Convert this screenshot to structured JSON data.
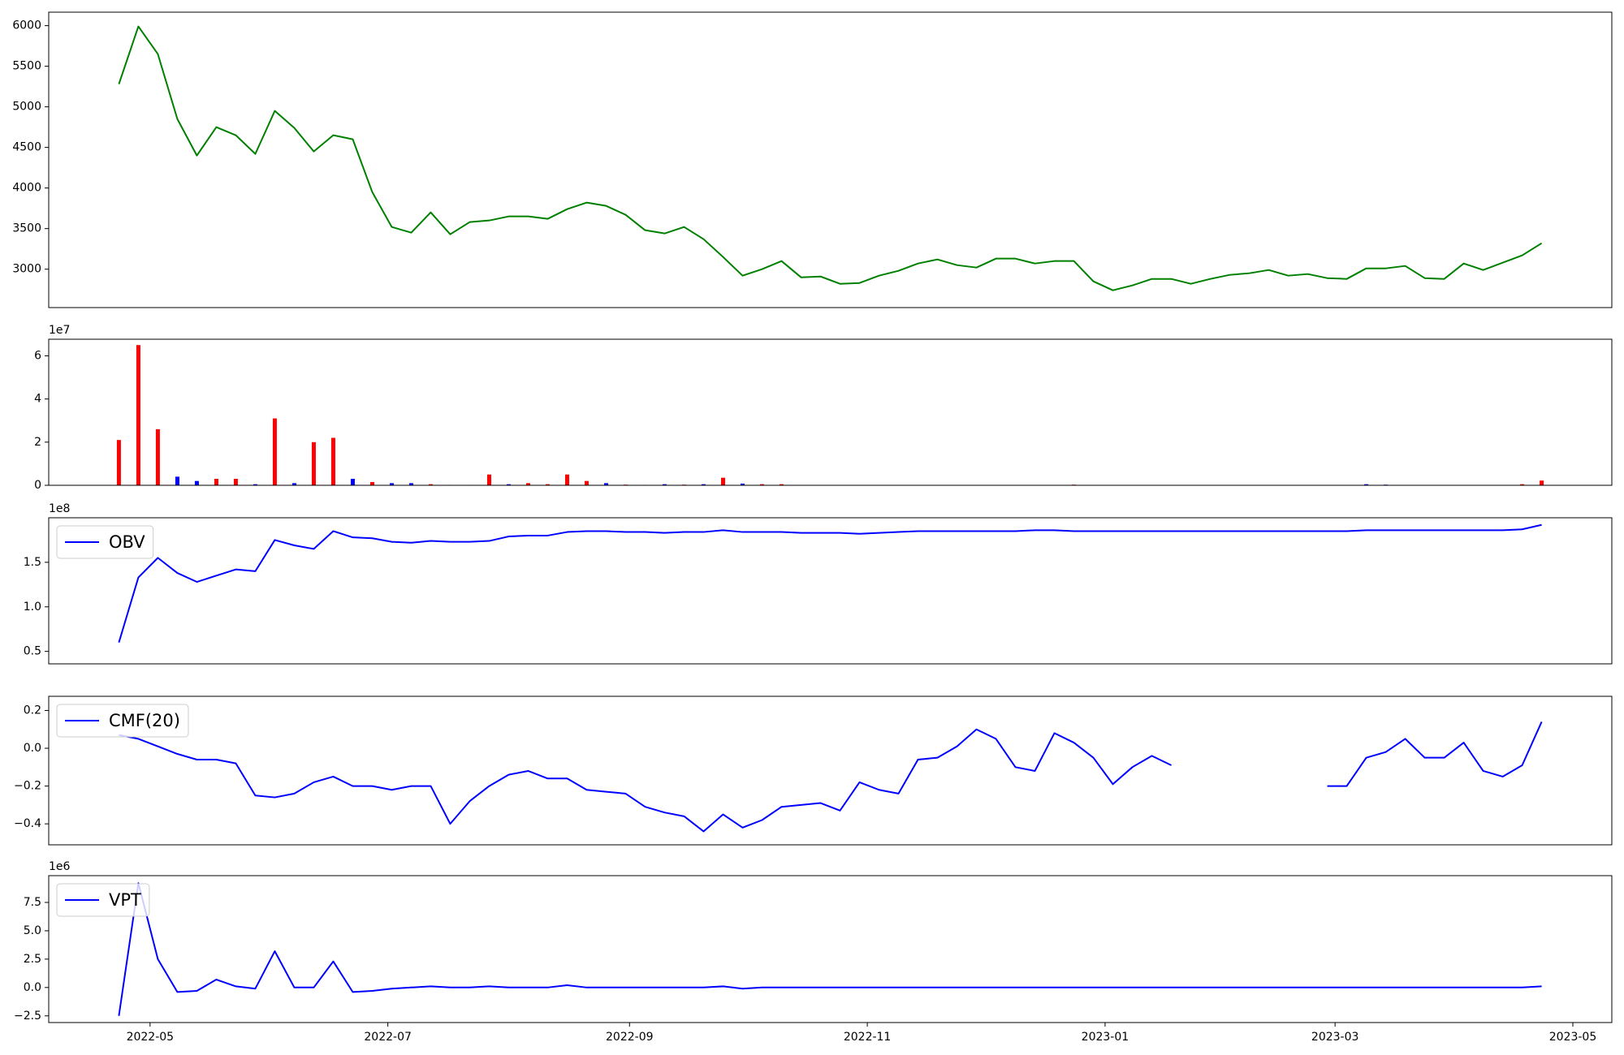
{
  "chart_data": [
    {
      "type": "line",
      "x": [
        19105,
        19110,
        19115,
        19120,
        19125,
        19130,
        19135,
        19140,
        19145,
        19150,
        19155,
        19160,
        19165,
        19170,
        19175,
        19180,
        19185,
        19190,
        19195,
        19200,
        19205,
        19210,
        19215,
        19220,
        19225,
        19230,
        19235,
        19240,
        19245,
        19250,
        19255,
        19260,
        19265,
        19270,
        19275,
        19280,
        19285,
        19290,
        19295,
        19300,
        19305,
        19310,
        19315,
        19320,
        19325,
        19330,
        19335,
        19340,
        19345,
        19350,
        19355,
        19360,
        19365,
        19370,
        19375,
        19380,
        19385,
        19390,
        19395,
        19400,
        19405,
        19410,
        19415,
        19420,
        19425,
        19430,
        19435,
        19440,
        19445,
        19450,
        19455,
        19460,
        19465,
        19470
      ],
      "series": [
        {
          "color": "#008000",
          "values": [
            5280,
            5990,
            5650,
            4850,
            4400,
            4750,
            4650,
            4420,
            4950,
            4740,
            4450,
            4650,
            4600,
            3950,
            3520,
            3450,
            3700,
            3430,
            3580,
            3600,
            3650,
            3650,
            3620,
            3740,
            3820,
            3780,
            3670,
            3480,
            3440,
            3520,
            3370,
            3150,
            2920,
            3000,
            3100,
            2900,
            2910,
            2820,
            2830,
            2920,
            2980,
            3070,
            3120,
            3050,
            3020,
            3130,
            3130,
            3070,
            3100,
            3100,
            2850,
            2740,
            2800,
            2880,
            2880,
            2820,
            2880,
            2930,
            2950,
            2990,
            2920,
            2940,
            2890,
            2880,
            3010,
            3010,
            3040,
            2890,
            2880,
            3070,
            2990,
            3080,
            3170,
            3320
          ]
        }
      ],
      "xlim": [
        19087,
        19488
      ],
      "ylim": [
        2527,
        6166
      ],
      "yticks": [
        3000,
        3500,
        4000,
        4500,
        5000,
        5500,
        6000
      ]
    },
    {
      "type": "bar",
      "x": [
        19105,
        19110,
        19115,
        19120,
        19125,
        19130,
        19135,
        19140,
        19145,
        19150,
        19155,
        19160,
        19165,
        19170,
        19175,
        19180,
        19185,
        19190,
        19195,
        19200,
        19205,
        19210,
        19215,
        19220,
        19225,
        19230,
        19235,
        19240,
        19245,
        19250,
        19255,
        19260,
        19265,
        19270,
        19275,
        19280,
        19285,
        19290,
        19295,
        19300,
        19305,
        19310,
        19315,
        19320,
        19325,
        19330,
        19335,
        19340,
        19345,
        19350,
        19355,
        19360,
        19365,
        19370,
        19375,
        19380,
        19385,
        19390,
        19395,
        19400,
        19405,
        19410,
        19415,
        19420,
        19425,
        19430,
        19435,
        19440,
        19445,
        19450,
        19455,
        19460,
        19465,
        19470
      ],
      "values": [
        21000000,
        65000000,
        26000000,
        4000000,
        2000000,
        3000000,
        3000000,
        500000,
        31000000,
        1000000,
        20000000,
        22000000,
        3000000,
        1500000,
        1000000,
        1000000,
        500000,
        200000,
        200000,
        5000000,
        500000,
        1000000,
        500000,
        5000000,
        2000000,
        1000000,
        300000,
        200000,
        500000,
        300000,
        500000,
        3500000,
        800000,
        500000,
        500000,
        100000,
        50000,
        100000,
        50000,
        100000,
        50000,
        100000,
        50000,
        50000,
        50000,
        50000,
        50000,
        50000,
        50000,
        300000,
        50000,
        50000,
        50000,
        50000,
        50000,
        50000,
        50000,
        50000,
        50000,
        50000,
        50000,
        50000,
        50000,
        50000,
        500000,
        300000,
        50000,
        50000,
        50000,
        50000,
        50000,
        50000,
        500000,
        2200000
      ],
      "colors": [
        "#ff0000",
        "#ff0000",
        "#ff0000",
        "#0000ff",
        "#0000ff",
        "#ff0000",
        "#ff0000",
        "#0000ff",
        "#ff0000",
        "#0000ff",
        "#ff0000",
        "#ff0000",
        "#0000ff",
        "#ff0000",
        "#0000ff",
        "#0000ff",
        "#ff0000",
        "#0000ff",
        "#ff0000",
        "#ff0000",
        "#0000ff",
        "#ff0000",
        "#ff0000",
        "#ff0000",
        "#ff0000",
        "#0000ff",
        "#ff0000",
        "#0000ff",
        "#0000ff",
        "#ff0000",
        "#0000ff",
        "#ff0000",
        "#0000ff",
        "#ff0000",
        "#ff0000",
        "#0000ff",
        "#ff0000",
        "#0000ff",
        "#ff0000",
        "#ff0000",
        "#0000ff",
        "#ff0000",
        "#0000ff",
        "#ff0000",
        "#0000ff",
        "#ff0000",
        "#0000ff",
        "#ff0000",
        "#0000ff",
        "#ff0000",
        "#ff0000",
        "#0000ff",
        "#0000ff",
        "#ff0000",
        "#0000ff",
        "#ff0000",
        "#0000ff",
        "#ff0000",
        "#0000ff",
        "#ff0000",
        "#0000ff",
        "#ff0000",
        "#0000ff",
        "#0000ff",
        "#0000ff",
        "#0000ff",
        "#ff0000",
        "#0000ff",
        "#ff0000",
        "#0000ff",
        "#ff0000",
        "#0000ff",
        "#ff0000",
        "#ff0000"
      ],
      "xlim": [
        19087,
        19488
      ],
      "ylim": [
        0,
        67700000
      ],
      "y_offset_label": "1e7",
      "yticks": [
        {
          "value": 0,
          "label": "0"
        },
        {
          "value": 20000000,
          "label": "2"
        },
        {
          "value": 40000000,
          "label": "4"
        },
        {
          "value": 60000000,
          "label": "6"
        }
      ]
    },
    {
      "type": "line",
      "x": [
        19105,
        19110,
        19115,
        19120,
        19125,
        19130,
        19135,
        19140,
        19145,
        19150,
        19155,
        19160,
        19165,
        19170,
        19175,
        19180,
        19185,
        19190,
        19195,
        19200,
        19205,
        19210,
        19215,
        19220,
        19225,
        19230,
        19235,
        19240,
        19245,
        19250,
        19255,
        19260,
        19265,
        19270,
        19275,
        19280,
        19285,
        19290,
        19295,
        19300,
        19305,
        19310,
        19315,
        19320,
        19325,
        19330,
        19335,
        19340,
        19345,
        19350,
        19355,
        19360,
        19365,
        19370,
        19375,
        19380,
        19385,
        19390,
        19395,
        19400,
        19405,
        19410,
        19415,
        19420,
        19425,
        19430,
        19435,
        19440,
        19445,
        19450,
        19455,
        19460,
        19465,
        19470
      ],
      "series": [
        {
          "name": "OBV",
          "color": "#0000ff",
          "values": [
            60000000,
            133000000,
            155000000,
            138000000,
            128000000,
            135000000,
            142000000,
            140000000,
            175000000,
            169000000,
            165000000,
            185000000,
            178000000,
            177000000,
            173000000,
            172000000,
            174000000,
            173000000,
            173000000,
            174000000,
            179000000,
            180000000,
            180000000,
            184000000,
            185000000,
            185000000,
            184000000,
            184000000,
            183000000,
            184000000,
            184000000,
            186000000,
            184000000,
            184000000,
            184000000,
            183000000,
            183000000,
            183000000,
            182000000,
            183000000,
            184000000,
            185000000,
            185000000,
            185000000,
            185000000,
            185000000,
            185000000,
            186000000,
            186000000,
            185000000,
            185000000,
            185000000,
            185000000,
            185000000,
            185000000,
            185000000,
            185000000,
            185000000,
            185000000,
            185000000,
            185000000,
            185000000,
            185000000,
            185000000,
            186000000,
            186000000,
            186000000,
            186000000,
            186000000,
            186000000,
            186000000,
            186000000,
            187000000,
            192000000
          ]
        }
      ],
      "xlim": [
        19087,
        19488
      ],
      "ylim": [
        36000000,
        200000000
      ],
      "y_offset_label": "1e8",
      "legend": "upper left",
      "yticks": [
        {
          "value": 50000000,
          "label": "0.5"
        },
        {
          "value": 100000000,
          "label": "1.0"
        },
        {
          "value": 150000000,
          "label": "1.5"
        }
      ]
    },
    {
      "type": "line",
      "x": [
        19105,
        19110,
        19115,
        19120,
        19125,
        19130,
        19135,
        19140,
        19145,
        19150,
        19155,
        19160,
        19165,
        19170,
        19175,
        19180,
        19185,
        19190,
        19195,
        19200,
        19205,
        19210,
        19215,
        19220,
        19225,
        19230,
        19235,
        19240,
        19245,
        19250,
        19255,
        19260,
        19265,
        19270,
        19275,
        19280,
        19285,
        19290,
        19295,
        19300,
        19305,
        19310,
        19315,
        19320,
        19325,
        19330,
        19335,
        19340,
        19345,
        19350,
        19355,
        19360,
        19365,
        19370,
        19375,
        19380,
        19385,
        19390,
        19395,
        19400,
        19405,
        19410,
        19415,
        19420,
        19425,
        19430,
        19435,
        19440,
        19445,
        19450,
        19455,
        19460,
        19465,
        19470
      ],
      "series": [
        {
          "name": "CMF(20)",
          "color": "#0000ff",
          "values": [
            0.07,
            0.05,
            0.01,
            -0.03,
            -0.06,
            -0.06,
            -0.08,
            -0.25,
            -0.26,
            -0.24,
            -0.18,
            -0.15,
            -0.2,
            -0.2,
            -0.22,
            -0.2,
            -0.2,
            -0.4,
            -0.28,
            -0.2,
            -0.14,
            -0.12,
            -0.16,
            -0.16,
            -0.22,
            -0.23,
            -0.24,
            -0.31,
            -0.34,
            -0.36,
            -0.44,
            -0.35,
            -0.42,
            -0.38,
            -0.31,
            -0.3,
            -0.29,
            -0.33,
            -0.18,
            -0.22,
            -0.24,
            -0.06,
            -0.05,
            0.01,
            0.1,
            0.05,
            -0.1,
            -0.12,
            0.08,
            0.03,
            -0.05,
            -0.19,
            -0.1,
            -0.04,
            -0.09,
            null,
            null,
            null,
            null,
            null,
            null,
            null,
            -0.2,
            -0.2,
            -0.05,
            -0.02,
            0.05,
            -0.05,
            -0.05,
            0.03,
            -0.12,
            -0.15,
            -0.09,
            0.14
          ]
        }
      ],
      "xlim": [
        19087,
        19488
      ],
      "ylim": [
        -0.511,
        0.275
      ],
      "legend": "upper left",
      "yticks": [
        {
          "value": -0.4,
          "label": "−0.4"
        },
        {
          "value": -0.2,
          "label": "−0.2"
        },
        {
          "value": 0,
          "label": "0.0"
        },
        0.2
      ]
    },
    {
      "type": "line",
      "x": [
        19105,
        19110,
        19115,
        19120,
        19125,
        19130,
        19135,
        19140,
        19145,
        19150,
        19155,
        19160,
        19165,
        19170,
        19175,
        19180,
        19185,
        19190,
        19195,
        19200,
        19205,
        19210,
        19215,
        19220,
        19225,
        19230,
        19235,
        19240,
        19245,
        19250,
        19255,
        19260,
        19265,
        19270,
        19275,
        19280,
        19285,
        19290,
        19295,
        19300,
        19305,
        19310,
        19315,
        19320,
        19325,
        19330,
        19335,
        19340,
        19345,
        19350,
        19355,
        19360,
        19365,
        19370,
        19375,
        19380,
        19385,
        19390,
        19395,
        19400,
        19405,
        19410,
        19415,
        19420,
        19425,
        19430,
        19435,
        19440,
        19445,
        19450,
        19455,
        19460,
        19465,
        19470
      ],
      "series": [
        {
          "name": "VPT",
          "color": "#0000ff",
          "values": [
            -2500000,
            9200000,
            2500000,
            -400000,
            -300000,
            700000,
            100000,
            -100000,
            3200000,
            0,
            0,
            2300000,
            -400000,
            -300000,
            -100000,
            0,
            100000,
            0,
            0,
            100000,
            0,
            0,
            0,
            200000,
            0,
            0,
            0,
            0,
            0,
            0,
            0,
            100000,
            -100000,
            0,
            0,
            0,
            0,
            0,
            0,
            0,
            0,
            0,
            0,
            0,
            0,
            0,
            0,
            0,
            0,
            0,
            0,
            0,
            0,
            0,
            0,
            0,
            0,
            0,
            0,
            0,
            0,
            0,
            0,
            0,
            0,
            0,
            0,
            0,
            0,
            0,
            0,
            0,
            0,
            100000
          ]
        }
      ],
      "xlim": [
        19087,
        19488
      ],
      "ylim": [
        -3090000,
        9860000
      ],
      "y_offset_label": "1e6",
      "legend": "upper left",
      "yticks": [
        {
          "value": -2500000,
          "label": "−2.5"
        },
        {
          "value": 0,
          "label": "0.0"
        },
        {
          "value": 2500000,
          "label": "2.5"
        },
        {
          "value": 5000000,
          "label": "5.0"
        },
        {
          "value": 7500000,
          "label": "7.5"
        }
      ],
      "xticks": [
        {
          "value": 19113,
          "label": "2022-05"
        },
        {
          "value": 19174,
          "label": "2022-07"
        },
        {
          "value": 19236,
          "label": "2022-09"
        },
        {
          "value": 19297,
          "label": "2022-11"
        },
        {
          "value": 19358,
          "label": "2023-01"
        },
        {
          "value": 19417,
          "label": "2023-03"
        },
        {
          "value": 19478,
          "label": "2023-05"
        }
      ]
    }
  ]
}
